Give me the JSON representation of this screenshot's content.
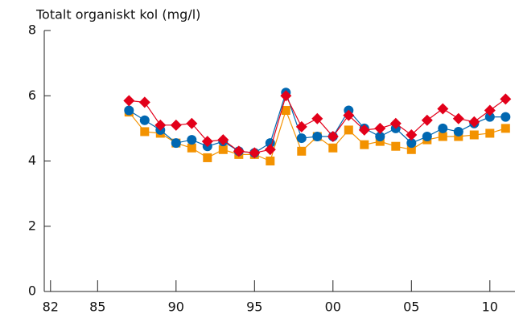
{
  "chart_data": {
    "type": "line",
    "title": "Totalt organiskt kol (mg/l)",
    "x": [
      1987,
      1988,
      1989,
      1990,
      1991,
      1992,
      1993,
      1994,
      1995,
      1996,
      1997,
      1998,
      1999,
      2000,
      2001,
      2002,
      2003,
      2004,
      2005,
      2006,
      2007,
      2008,
      2009,
      2010,
      2011
    ],
    "series": [
      {
        "color": "#f39200",
        "marker": "square",
        "values": [
          5.5,
          4.9,
          4.85,
          4.55,
          4.4,
          4.1,
          4.35,
          4.2,
          4.2,
          4.0,
          5.55,
          4.3,
          4.75,
          4.4,
          4.95,
          4.5,
          4.6,
          4.45,
          4.35,
          4.65,
          4.75,
          4.75,
          4.8,
          4.85,
          5.0
        ]
      },
      {
        "color": "#0067b1",
        "marker": "circle",
        "values": [
          5.55,
          5.25,
          4.95,
          4.55,
          4.65,
          4.45,
          4.6,
          4.3,
          4.25,
          4.55,
          6.1,
          4.7,
          4.75,
          4.75,
          5.55,
          5.0,
          4.75,
          5.0,
          4.55,
          4.75,
          5.0,
          4.9,
          5.15,
          5.35,
          5.35
        ]
      },
      {
        "color": "#e2001a",
        "marker": "diamond",
        "values": [
          5.85,
          5.8,
          5.1,
          5.1,
          5.15,
          4.6,
          4.65,
          4.3,
          4.25,
          4.35,
          6.0,
          5.05,
          5.3,
          4.75,
          5.4,
          4.95,
          5.0,
          5.15,
          4.8,
          5.25,
          5.6,
          5.3,
          5.2,
          5.55,
          5.9
        ]
      }
    ],
    "xlim": [
      1981.6,
      2011.6
    ],
    "xticks": [
      {
        "value": 1982,
        "label": "82"
      },
      {
        "value": 1985,
        "label": "85"
      },
      {
        "value": 1990,
        "label": "90"
      },
      {
        "value": 1995,
        "label": "95"
      },
      {
        "value": 2000,
        "label": "00"
      },
      {
        "value": 2005,
        "label": "05"
      },
      {
        "value": 2010,
        "label": "10"
      }
    ],
    "ylim": [
      0,
      8
    ],
    "yticks": [
      0,
      2,
      4,
      6,
      8
    ]
  }
}
